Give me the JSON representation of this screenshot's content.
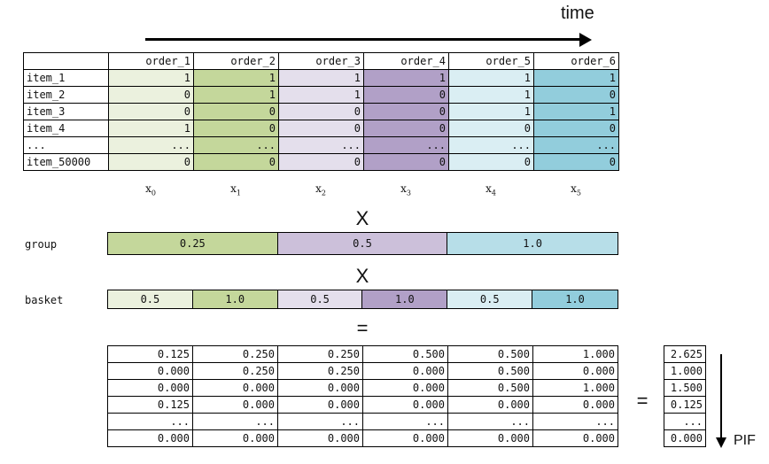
{
  "time_label": "time",
  "top_table": {
    "headers": [
      "",
      "order_1",
      "order_2",
      "order_3",
      "order_4",
      "order_5",
      "order_6"
    ],
    "rows": [
      {
        "label": "item_1",
        "values": [
          "1",
          "1",
          "1",
          "1",
          "1",
          "1"
        ]
      },
      {
        "label": "item_2",
        "values": [
          "0",
          "1",
          "1",
          "0",
          "1",
          "0"
        ]
      },
      {
        "label": "item_3",
        "values": [
          "0",
          "0",
          "0",
          "0",
          "1",
          "1"
        ]
      },
      {
        "label": "item_4",
        "values": [
          "1",
          "0",
          "0",
          "0",
          "0",
          "0"
        ]
      },
      {
        "label": "...",
        "values": [
          "...",
          "...",
          "...",
          "...",
          "...",
          "..."
        ]
      },
      {
        "label": "item_50000",
        "values": [
          "0",
          "0",
          "0",
          "0",
          "0",
          "0"
        ]
      }
    ],
    "column_colors": [
      "#ebf1de",
      "#c4d79b",
      "#e4dfec",
      "#b1a0c7",
      "#daeef3",
      "#92cddc"
    ]
  },
  "x_labels": [
    {
      "base": "x",
      "sub": "0"
    },
    {
      "base": "x",
      "sub": "1"
    },
    {
      "base": "x",
      "sub": "2"
    },
    {
      "base": "x",
      "sub": "3"
    },
    {
      "base": "x",
      "sub": "4"
    },
    {
      "base": "x",
      "sub": "5"
    }
  ],
  "operators": {
    "times1": "X",
    "times2": "X",
    "equals1": "=",
    "equals2": "="
  },
  "group": {
    "label": "group",
    "cells": [
      {
        "value": "0.25",
        "color": "#c4d79b"
      },
      {
        "value": "0.5",
        "color": "#ccc0da"
      },
      {
        "value": "1.0",
        "color": "#b7dee8"
      }
    ]
  },
  "basket": {
    "label": "basket",
    "cells": [
      {
        "value": "0.5",
        "color": "#ebf1de"
      },
      {
        "value": "1.0",
        "color": "#c4d79b"
      },
      {
        "value": "0.5",
        "color": "#e4dfec"
      },
      {
        "value": "1.0",
        "color": "#b1a0c7"
      },
      {
        "value": "0.5",
        "color": "#daeef3"
      },
      {
        "value": "1.0",
        "color": "#92cddc"
      }
    ]
  },
  "result_table": [
    [
      "0.125",
      "0.250",
      "0.250",
      "0.500",
      "0.500",
      "1.000"
    ],
    [
      "0.000",
      "0.250",
      "0.250",
      "0.000",
      "0.500",
      "0.000"
    ],
    [
      "0.000",
      "0.000",
      "0.000",
      "0.000",
      "0.500",
      "1.000"
    ],
    [
      "0.125",
      "0.000",
      "0.000",
      "0.000",
      "0.000",
      "0.000"
    ],
    [
      "...",
      "...",
      "...",
      "...",
      "...",
      "..."
    ],
    [
      "0.000",
      "0.000",
      "0.000",
      "0.000",
      "0.000",
      "0.000"
    ]
  ],
  "pif_values": [
    "2.625",
    "1.000",
    "1.500",
    "0.125",
    "...",
    "0.000"
  ],
  "pif_label": "PIF"
}
